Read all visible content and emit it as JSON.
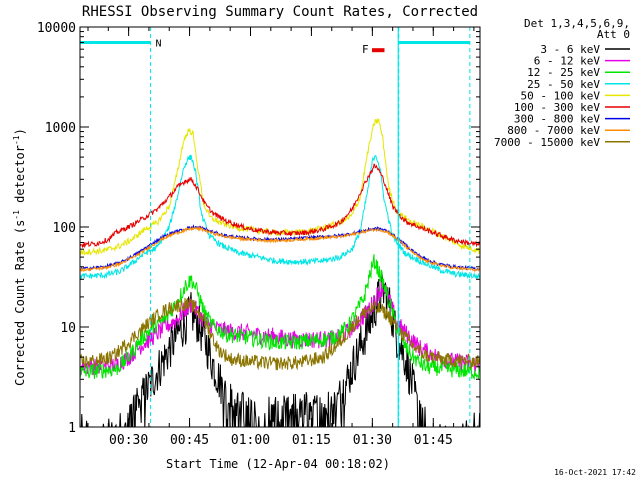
{
  "chart_data": {
    "type": "line",
    "title": "RHESSI Observing Summary Count Rates, Corrected",
    "xlabel": "Start Time (12-Apr-04 00:18:02)",
    "ylabel": "Corrected Count Rate (s⁻¹ detector⁻¹)",
    "ylabel_parts": [
      "Corrected Count Rate (s",
      "-1",
      " detector",
      "-1",
      ")"
    ],
    "x_units": "minutes since 00:00 UT",
    "xlim": [
      18.03,
      116.5
    ],
    "ylim": [
      1,
      10000
    ],
    "yscale": "log",
    "x_ticks": [
      {
        "value": 30,
        "label": "00:30"
      },
      {
        "value": 45,
        "label": "00:45"
      },
      {
        "value": 60,
        "label": "01:00"
      },
      {
        "value": 75,
        "label": "01:15"
      },
      {
        "value": 90,
        "label": "01:30"
      },
      {
        "value": 105,
        "label": "01:45"
      }
    ],
    "y_ticks": [
      {
        "value": 1,
        "label": "1"
      },
      {
        "value": 10,
        "label": "10"
      },
      {
        "value": 100,
        "label": "100"
      },
      {
        "value": 1000,
        "label": "1000"
      },
      {
        "value": 10000,
        "label": "10000"
      }
    ],
    "legend_header": [
      "Det 1,3,4,5,6,9,",
      "Att 0"
    ],
    "legend_position": "right",
    "series": [
      {
        "name": "3 - 6 keV",
        "color": "#000000",
        "points": [
          [
            18,
            0.7
          ],
          [
            27,
            0.8
          ],
          [
            30,
            1
          ],
          [
            33,
            1.8
          ],
          [
            36,
            3
          ],
          [
            39,
            5
          ],
          [
            42,
            8.5
          ],
          [
            44,
            11
          ],
          [
            45.5,
            14
          ],
          [
            47,
            11
          ],
          [
            49,
            7
          ],
          [
            51,
            4
          ],
          [
            54,
            2
          ],
          [
            57,
            1.5
          ],
          [
            60,
            1.2
          ],
          [
            63,
            1
          ],
          [
            66,
            1.2
          ],
          [
            70,
            1.3
          ],
          [
            74,
            1.4
          ],
          [
            78,
            1.4
          ],
          [
            81,
            1.6
          ],
          [
            84,
            3
          ],
          [
            86,
            5
          ],
          [
            88,
            8
          ],
          [
            90,
            13
          ],
          [
            92,
            22
          ],
          [
            93,
            23
          ],
          [
            94.5,
            15
          ],
          [
            96,
            8
          ],
          [
            98,
            5
          ],
          [
            100,
            2.5
          ],
          [
            102,
            1
          ],
          [
            104,
            0.7
          ],
          [
            116.5,
            0.7
          ]
        ]
      },
      {
        "name": "6 - 12 keV",
        "color": "#e600e6",
        "points": [
          [
            18,
            4
          ],
          [
            27,
            4.2
          ],
          [
            30,
            5
          ],
          [
            33,
            6.5
          ],
          [
            36,
            8
          ],
          [
            39,
            10
          ],
          [
            42,
            12
          ],
          [
            44,
            15
          ],
          [
            45.5,
            17
          ],
          [
            47,
            14
          ],
          [
            49,
            11
          ],
          [
            52,
            9.5
          ],
          [
            55,
            9
          ],
          [
            58,
            8.8
          ],
          [
            62,
            8.3
          ],
          [
            66,
            8
          ],
          [
            70,
            7.5
          ],
          [
            74,
            7.5
          ],
          [
            78,
            7.5
          ],
          [
            81,
            7.5
          ],
          [
            84,
            9
          ],
          [
            86,
            11
          ],
          [
            88,
            13
          ],
          [
            90,
            17
          ],
          [
            92,
            24
          ],
          [
            93,
            25
          ],
          [
            94.5,
            17
          ],
          [
            96,
            11
          ],
          [
            99,
            8
          ],
          [
            102,
            6
          ],
          [
            106,
            5
          ],
          [
            110,
            4.5
          ],
          [
            116.5,
            4.2
          ]
        ]
      },
      {
        "name": "12 - 25 keV",
        "color": "#00e600",
        "points": [
          [
            18,
            3.5
          ],
          [
            27,
            3.8
          ],
          [
            30,
            5
          ],
          [
            33,
            7.5
          ],
          [
            36,
            10
          ],
          [
            39,
            12
          ],
          [
            42,
            18
          ],
          [
            44,
            26
          ],
          [
            45.5,
            30
          ],
          [
            47,
            22
          ],
          [
            49,
            13
          ],
          [
            51,
            10
          ],
          [
            54,
            8.5
          ],
          [
            58,
            8
          ],
          [
            62,
            7.5
          ],
          [
            66,
            7
          ],
          [
            70,
            7
          ],
          [
            74,
            7.2
          ],
          [
            78,
            7.5
          ],
          [
            81,
            8
          ],
          [
            84,
            10
          ],
          [
            86,
            14
          ],
          [
            88,
            20
          ],
          [
            89.5,
            35
          ],
          [
            90.5,
            46
          ],
          [
            92,
            33
          ],
          [
            93,
            25
          ],
          [
            94.5,
            16
          ],
          [
            96,
            10
          ],
          [
            98,
            6.5
          ],
          [
            100,
            5
          ],
          [
            103,
            4
          ],
          [
            108,
            3.8
          ],
          [
            116.5,
            3.5
          ]
        ]
      },
      {
        "name": "25 - 50 keV",
        "color": "#00e6e6",
        "points": [
          [
            18,
            32
          ],
          [
            24,
            33
          ],
          [
            28,
            36
          ],
          [
            31,
            44
          ],
          [
            34,
            55
          ],
          [
            37,
            62
          ],
          [
            40,
            100
          ],
          [
            42,
            200
          ],
          [
            43.5,
            380
          ],
          [
            44.5,
            480
          ],
          [
            45.5,
            500
          ],
          [
            46.5,
            350
          ],
          [
            48,
            130
          ],
          [
            50,
            80
          ],
          [
            53,
            65
          ],
          [
            57,
            55
          ],
          [
            62,
            50
          ],
          [
            66,
            46
          ],
          [
            70,
            45
          ],
          [
            74,
            45
          ],
          [
            78,
            46
          ],
          [
            82,
            50
          ],
          [
            85,
            60
          ],
          [
            87,
            90
          ],
          [
            89,
            250
          ],
          [
            90,
            450
          ],
          [
            90.8,
            540
          ],
          [
            91.8,
            400
          ],
          [
            93,
            180
          ],
          [
            95,
            80
          ],
          [
            98,
            55
          ],
          [
            102,
            45
          ],
          [
            106,
            38
          ],
          [
            110,
            34
          ],
          [
            116.5,
            32
          ]
        ]
      },
      {
        "name": "50 - 100 keV",
        "color": "#e6e600",
        "points": [
          [
            18,
            56
          ],
          [
            24,
            58
          ],
          [
            28,
            65
          ],
          [
            31,
            76
          ],
          [
            34,
            95
          ],
          [
            37,
            110
          ],
          [
            40,
            160
          ],
          [
            42,
            350
          ],
          [
            43.5,
            720
          ],
          [
            44.8,
            930
          ],
          [
            45.8,
            870
          ],
          [
            47,
            400
          ],
          [
            48.5,
            170
          ],
          [
            50,
            125
          ],
          [
            53,
            108
          ],
          [
            57,
            98
          ],
          [
            62,
            92
          ],
          [
            66,
            88
          ],
          [
            70,
            88
          ],
          [
            74,
            90
          ],
          [
            78,
            98
          ],
          [
            82,
            110
          ],
          [
            85,
            130
          ],
          [
            87,
            200
          ],
          [
            89,
            600
          ],
          [
            90.5,
            1100
          ],
          [
            91.5,
            1180
          ],
          [
            92.5,
            800
          ],
          [
            94,
            250
          ],
          [
            96,
            140
          ],
          [
            100,
            110
          ],
          [
            104,
            95
          ],
          [
            108,
            78
          ],
          [
            112,
            65
          ],
          [
            116.5,
            58
          ]
        ]
      },
      {
        "name": "100 - 300 keV",
        "color": "#e60000",
        "points": [
          [
            18,
            66
          ],
          [
            22,
            68
          ],
          [
            25,
            75
          ],
          [
            27,
            88
          ],
          [
            29,
            96
          ],
          [
            31,
            105
          ],
          [
            34,
            125
          ],
          [
            37,
            150
          ],
          [
            40,
            200
          ],
          [
            42,
            250
          ],
          [
            44,
            290
          ],
          [
            45.5,
            300
          ],
          [
            47,
            240
          ],
          [
            49,
            165
          ],
          [
            51,
            135
          ],
          [
            54,
            115
          ],
          [
            58,
            100
          ],
          [
            62,
            92
          ],
          [
            66,
            88
          ],
          [
            70,
            86
          ],
          [
            74,
            88
          ],
          [
            78,
            95
          ],
          [
            82,
            110
          ],
          [
            85,
            150
          ],
          [
            87,
            220
          ],
          [
            89,
            320
          ],
          [
            90.5,
            410
          ],
          [
            91.5,
            380
          ],
          [
            93,
            280
          ],
          [
            95,
            160
          ],
          [
            98,
            115
          ],
          [
            102,
            98
          ],
          [
            106,
            85
          ],
          [
            110,
            74
          ],
          [
            116.5,
            66
          ]
        ]
      },
      {
        "name": "300 - 800 keV",
        "color": "#0000e6",
        "points": [
          [
            18,
            38
          ],
          [
            24,
            40
          ],
          [
            28,
            44
          ],
          [
            32,
            54
          ],
          [
            35,
            65
          ],
          [
            38,
            78
          ],
          [
            41,
            88
          ],
          [
            44,
            96
          ],
          [
            46,
            100
          ],
          [
            48,
            98
          ],
          [
            51,
            88
          ],
          [
            54,
            82
          ],
          [
            58,
            78
          ],
          [
            62,
            76
          ],
          [
            66,
            75
          ],
          [
            70,
            76
          ],
          [
            74,
            78
          ],
          [
            78,
            80
          ],
          [
            82,
            82
          ],
          [
            85,
            86
          ],
          [
            88,
            92
          ],
          [
            90,
            96
          ],
          [
            92,
            96
          ],
          [
            94,
            90
          ],
          [
            96,
            78
          ],
          [
            99,
            62
          ],
          [
            102,
            50
          ],
          [
            106,
            43
          ],
          [
            110,
            40
          ],
          [
            116.5,
            38
          ]
        ]
      },
      {
        "name": "800 - 7000 keV",
        "color": "#ff8c00",
        "points": [
          [
            18,
            37
          ],
          [
            24,
            39
          ],
          [
            28,
            43
          ],
          [
            32,
            52
          ],
          [
            35,
            62
          ],
          [
            38,
            75
          ],
          [
            41,
            85
          ],
          [
            44,
            93
          ],
          [
            46,
            97
          ],
          [
            48,
            95
          ],
          [
            51,
            86
          ],
          [
            54,
            80
          ],
          [
            58,
            76
          ],
          [
            62,
            74
          ],
          [
            66,
            73
          ],
          [
            70,
            74
          ],
          [
            74,
            76
          ],
          [
            78,
            78
          ],
          [
            82,
            80
          ],
          [
            85,
            84
          ],
          [
            88,
            90
          ],
          [
            90,
            94
          ],
          [
            92,
            94
          ],
          [
            94,
            88
          ],
          [
            96,
            76
          ],
          [
            99,
            60
          ],
          [
            102,
            48
          ],
          [
            106,
            42
          ],
          [
            110,
            39
          ],
          [
            116.5,
            37
          ]
        ]
      },
      {
        "name": "7000 - 15000 keV",
        "color": "#8b7500",
        "points": [
          [
            18,
            4.5
          ],
          [
            22,
            4.6
          ],
          [
            26,
            5
          ],
          [
            29,
            6.5
          ],
          [
            32,
            8.5
          ],
          [
            35,
            11
          ],
          [
            38,
            14
          ],
          [
            41,
            16
          ],
          [
            44,
            17
          ],
          [
            46,
            16
          ],
          [
            48,
            13
          ],
          [
            50,
            9
          ],
          [
            52,
            6
          ],
          [
            55,
            4.8
          ],
          [
            60,
            4.5
          ],
          [
            66,
            4.3
          ],
          [
            72,
            4.4
          ],
          [
            78,
            5
          ],
          [
            82,
            7
          ],
          [
            85,
            10
          ],
          [
            88,
            14
          ],
          [
            90,
            15.5
          ],
          [
            92,
            15
          ],
          [
            94,
            13
          ],
          [
            96,
            10
          ],
          [
            98,
            8
          ],
          [
            100,
            6.5
          ],
          [
            103,
            5.2
          ],
          [
            108,
            4.7
          ],
          [
            116.5,
            4.5
          ]
        ]
      }
    ],
    "annotations": [
      {
        "label": "N",
        "kind": "night",
        "color": "#00e6e6",
        "x_start": 18.03,
        "x_end": 35.4,
        "y": 7000
      },
      {
        "label": "F",
        "kind": "flare",
        "color": "#e60000",
        "x_start": 90.9,
        "x_end": 92.0,
        "y": 6000
      },
      {
        "label": "",
        "kind": "night",
        "color": "#00e6e6",
        "x_start": 96.5,
        "x_end": 114.0,
        "y": 7000
      }
    ]
  },
  "footer": {
    "date_stamp": "16-Oct-2021 17:42"
  }
}
